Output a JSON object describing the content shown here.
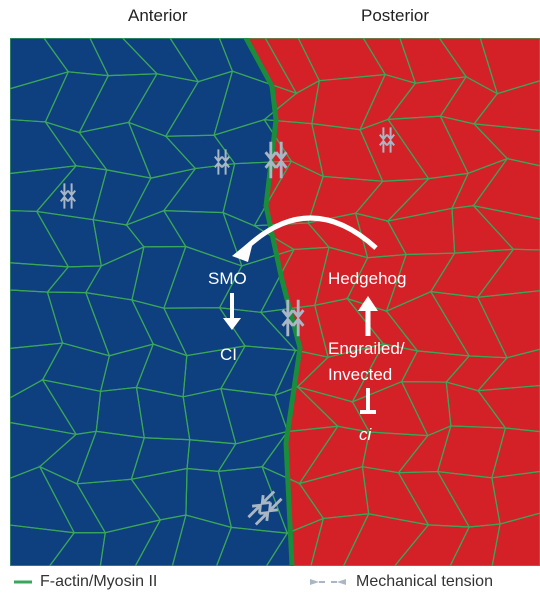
{
  "header": {
    "anterior": "Anterior",
    "posterior": "Posterior"
  },
  "labels": {
    "smo": "SMO",
    "ci_protein": "CI",
    "hedgehog": "Hedgehog",
    "engrailed": "Engrailed/",
    "invected": "Invected",
    "ci_gene": "ci"
  },
  "legend": {
    "factin": "F-actin/Myosin II",
    "tension": "Mechanical tension"
  },
  "colors": {
    "anterior": "#0e3f7e",
    "posterior": "#d42027",
    "cell_edge": "#3aa65a",
    "boundary": "#1a8c3c",
    "tension_arrow": "#a9b6c4",
    "signal_arrow": "#ffffff"
  }
}
